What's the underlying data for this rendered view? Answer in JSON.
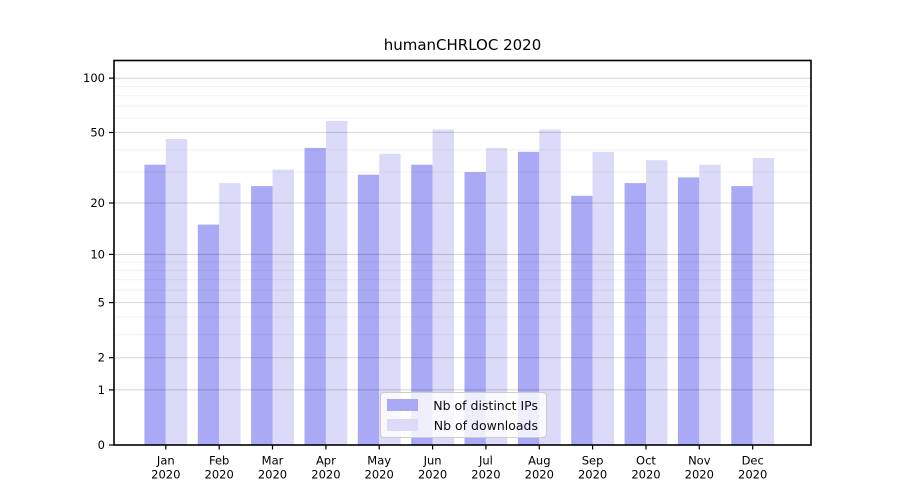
{
  "chart_data": {
    "type": "bar",
    "title": "humanCHRLOC 2020",
    "categories": [
      "Jan",
      "Feb",
      "Mar",
      "Apr",
      "May",
      "Jun",
      "Jul",
      "Aug",
      "Sep",
      "Oct",
      "Nov",
      "Dec"
    ],
    "x_tick_year": "2020",
    "series": [
      {
        "name": "Nb of distinct IPs",
        "color": "#a9a9f5",
        "values": [
          33,
          15,
          25,
          41,
          29,
          33,
          30,
          39,
          22,
          26,
          28,
          25
        ]
      },
      {
        "name": "Nb of downloads",
        "color": "#dbdbf9",
        "values": [
          46,
          26,
          31,
          58,
          38,
          52,
          41,
          52,
          39,
          35,
          33,
          36
        ]
      }
    ],
    "y_axis": {
      "scale": "log10(1+v)",
      "tick_labels": [
        "100",
        "50",
        "20",
        "10",
        "5",
        "2",
        "1",
        "0"
      ],
      "tick_values": [
        100,
        50,
        20,
        10,
        5,
        2,
        1,
        0
      ],
      "minor_tick_values": [
        3,
        4,
        6,
        7,
        8,
        9,
        30,
        40,
        60,
        70,
        80,
        90
      ],
      "grid": true
    },
    "legend": {
      "position": "bottom-center"
    },
    "colors": {
      "grid_major": "rgba(0,0,0,0.16)",
      "grid_minor": "rgba(0,0,0,0.05)",
      "spine": "#000000",
      "text": "#000000",
      "background": "#ffffff"
    }
  }
}
